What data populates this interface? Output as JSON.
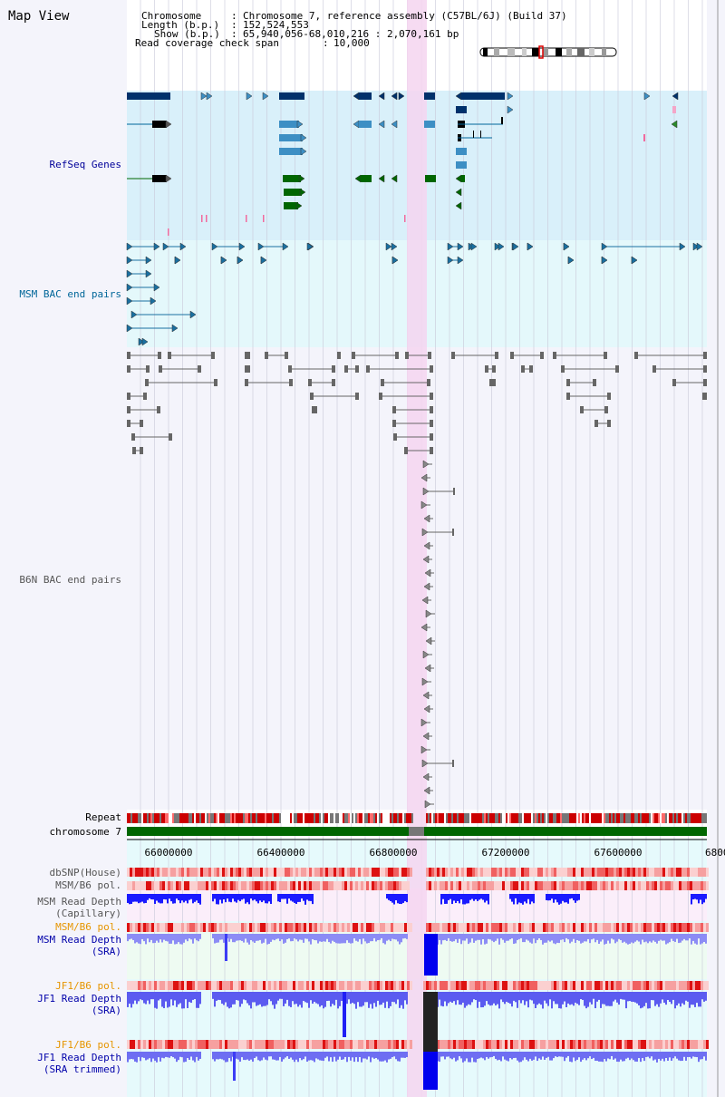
{
  "view_title": "Map View",
  "header": {
    "chromosome_key": "Chromosome",
    "chromosome_value": "Chromosome 7, reference assembly (C57BL/6J) (Build 37)",
    "length_key": "Length (b.p.)",
    "length_value": "152,524,553",
    "show_key": "Show (b.p.)",
    "show_value": "65,940,056-68,010,216 : 2,070,161 bp",
    "span_key": "Read coverage check span",
    "span_value": "10,000"
  },
  "tracks": {
    "refseq": {
      "label": "RefSeq Genes",
      "color": "#000099"
    },
    "msm_bac": {
      "label": "MSM BAC end pairs",
      "color": "#006699"
    },
    "b6n_bac": {
      "label": "B6N BAC end pairs",
      "color": "#555555"
    },
    "repeat": {
      "label": "Repeat"
    },
    "chromosome": {
      "label": "chromosome 7"
    },
    "dbsnp": {
      "label": "dbSNP(House)"
    },
    "msm_pol_1": {
      "label": "MSM/B6 pol."
    },
    "msm_depth_cap": {
      "label1": "MSM Read Depth",
      "label2": "(Capillary)"
    },
    "msm_pol_2": {
      "label": "MSM/B6 pol."
    },
    "msm_depth_sra": {
      "label1": "MSM Read Depth",
      "label2": "(SRA)"
    },
    "jf1_pol_1": {
      "label": "JF1/B6 pol."
    },
    "jf1_depth_sra": {
      "label1": "JF1 Read Depth",
      "label2": "(SRA)"
    },
    "jf1_pol_2": {
      "label": "JF1/B6 pol."
    },
    "jf1_depth_trim": {
      "label1": "JF1 Read Depth",
      "label2": "(SRA trimmed)"
    }
  },
  "axis": {
    "ticks": [
      "66000000",
      "66400000",
      "66800000",
      "67200000",
      "67600000",
      "6800"
    ]
  },
  "colors": {
    "refseq_bg": "#d9f0fa",
    "msm_bg": "#e4f8fb",
    "highlight": "#f5d5f0",
    "chromosome": "#006600",
    "depth_msm": "#1a1aff",
    "depth_jf1": "#4a4aff"
  }
}
